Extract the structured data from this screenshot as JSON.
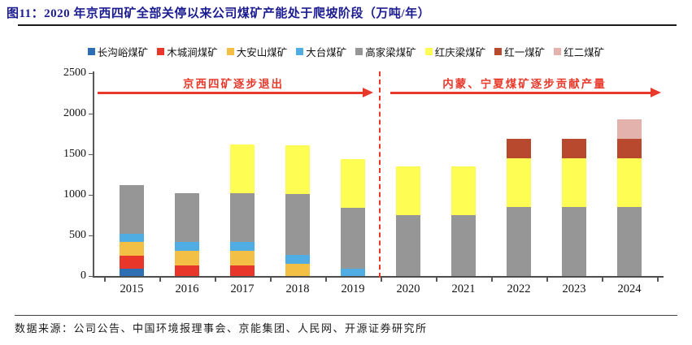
{
  "header": {
    "title": "图11：2020 年京西四矿全部关停以来公司煤矿产能处于爬坡阶段（万吨/年）"
  },
  "annotations": {
    "left_phase": "京西四矿逐步退出",
    "right_phase": "内蒙、宁夏煤矿逐步贡献产量"
  },
  "footer": {
    "source": "数据来源：公司公告、中国环境报理事会、京能集团、人民网、开源证券研究所"
  },
  "colors": {
    "title_navy": "#1c1c91",
    "accent_red": "#e8392b",
    "axis_gray": "#595959",
    "text_black": "#1a1a1a"
  },
  "chart_data": {
    "type": "bar",
    "stacked": true,
    "title": "2020 年京西四矿全部关停以来公司煤矿产能处于爬坡阶段（万吨/年）",
    "unit": "万吨/年",
    "grid": false,
    "legend_position": "top",
    "ylim": [
      0,
      2500
    ],
    "yticks": [
      0,
      500,
      1000,
      1500,
      2000,
      2500
    ],
    "categories": [
      "2015",
      "2016",
      "2017",
      "2018",
      "2019",
      "2020",
      "2021",
      "2022",
      "2023",
      "2024"
    ],
    "series": [
      {
        "key": "changgouyu",
        "name": "长沟峪煤矿",
        "color": "#2e6eb5",
        "values": [
          90,
          0,
          0,
          0,
          0,
          0,
          0,
          0,
          0,
          0
        ]
      },
      {
        "key": "muchengjian",
        "name": "木城涧煤矿",
        "color": "#e8372a",
        "values": [
          160,
          130,
          130,
          0,
          0,
          0,
          0,
          0,
          0,
          0
        ]
      },
      {
        "key": "daanshan",
        "name": "大安山煤矿",
        "color": "#f3bf45",
        "values": [
          170,
          180,
          180,
          150,
          0,
          0,
          0,
          0,
          0,
          0
        ]
      },
      {
        "key": "datai",
        "name": "大台煤矿",
        "color": "#4fade4",
        "values": [
          100,
          110,
          110,
          110,
          90,
          0,
          0,
          0,
          0,
          0
        ]
      },
      {
        "key": "gaojialiang",
        "name": "高家梁煤矿",
        "color": "#969696",
        "values": [
          600,
          600,
          600,
          750,
          750,
          750,
          750,
          850,
          850,
          850
        ]
      },
      {
        "key": "hongqingliang",
        "name": "红庆梁煤矿",
        "color": "#fdfd54",
        "values": [
          0,
          0,
          600,
          600,
          600,
          600,
          600,
          600,
          600,
          600
        ]
      },
      {
        "key": "hongyi",
        "name": "红一煤矿",
        "color": "#b8492f",
        "values": [
          0,
          0,
          0,
          0,
          0,
          0,
          0,
          240,
          240,
          240
        ]
      },
      {
        "key": "honger",
        "name": "红二煤矿",
        "color": "#e3b2ac",
        "values": [
          0,
          0,
          0,
          0,
          0,
          0,
          0,
          0,
          0,
          240
        ]
      }
    ],
    "totals": [
      1120,
      1020,
      1620,
      1610,
      1440,
      1350,
      1350,
      1690,
      1690,
      1930
    ]
  }
}
